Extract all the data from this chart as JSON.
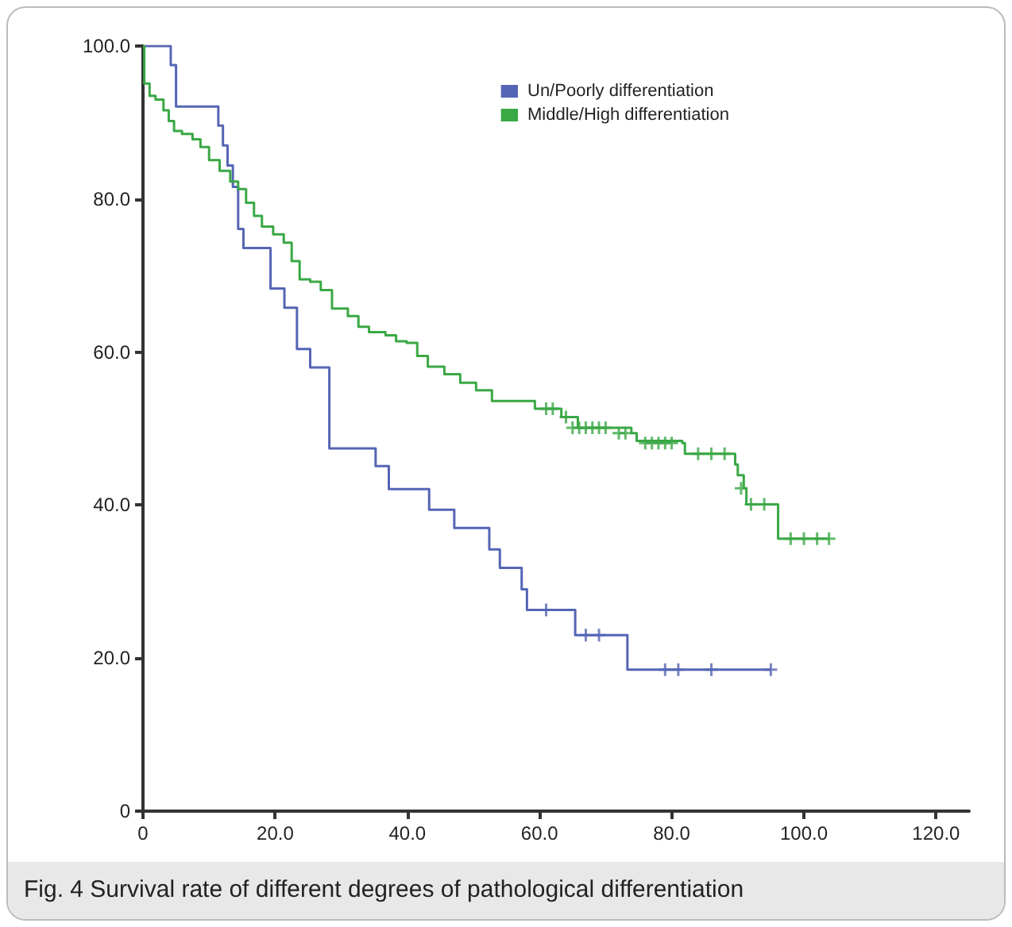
{
  "chart_data": {
    "type": "step",
    "annotations": [
      "Fig. 4 Survival rate of different degrees of pathological differentiation"
    ],
    "xlim": [
      0,
      125
    ],
    "xticks": [
      0,
      {
        "value": 20,
        "label": "20.0"
      },
      {
        "value": 40,
        "label": "40.0"
      },
      {
        "value": 60,
        "label": "60.0"
      },
      {
        "value": 80,
        "label": "80.0"
      },
      {
        "value": 100,
        "label": "100.0"
      },
      {
        "value": 120,
        "label": "120.0"
      }
    ],
    "ylim": [
      0,
      100
    ],
    "yticks": [
      0,
      {
        "value": 20,
        "label": "20.0"
      },
      {
        "value": 40,
        "label": "40.0"
      },
      {
        "value": 60,
        "label": "60.0"
      },
      {
        "value": 80,
        "label": "80.0"
      },
      {
        "value": 100,
        "label": "100.0"
      }
    ],
    "grid": false,
    "legend": "top right",
    "marker": "none",
    "line_style": "solid",
    "series": [
      {
        "name": "Un/Poorly differentiation",
        "color": "#5565b5",
        "x": [
          0,
          4.2,
          5,
          11.4,
          12.1,
          12.8,
          13.6,
          14.4,
          15.2,
          19.3,
          21.4,
          23.3,
          25.3,
          28.2,
          35.2,
          37.2,
          43.3,
          47.1,
          52.4,
          54,
          57.3,
          58.1,
          65.4,
          73.3,
          95
        ],
        "values": [
          100,
          97.5,
          92.1,
          89.6,
          87,
          84.4,
          81.6,
          76.1,
          73.6,
          68.3,
          65.8,
          60.4,
          58,
          47.4,
          45.1,
          42.1,
          39.4,
          37,
          34.2,
          31.8,
          29,
          26.3,
          23,
          18.5,
          18.5
        ]
      },
      {
        "name": "Middle/High differentiation",
        "color": "#3aa845",
        "x": [
          0,
          0.2,
          1,
          1.9,
          3.1,
          3.9,
          4.7,
          5.9,
          7.5,
          8.7,
          10,
          11.6,
          13.2,
          14.4,
          15.6,
          16.8,
          18,
          19.7,
          21.3,
          22.5,
          23.7,
          25.3,
          26.9,
          28.6,
          31,
          32.6,
          34.2,
          36.7,
          38.3,
          39.9,
          41.5,
          43.1,
          45.6,
          48,
          50.4,
          52.8,
          59.3,
          63.3,
          65.8,
          73.9,
          74.7,
          81.6,
          82,
          89.6,
          90,
          90.9,
          91.3,
          96.1,
          103.8
        ],
        "values": [
          100,
          95.1,
          93.5,
          93,
          91.6,
          90.2,
          88.9,
          88.5,
          87.8,
          86.8,
          85.1,
          83.7,
          82.3,
          81.3,
          79.5,
          77.8,
          76.4,
          75.4,
          74.3,
          71.9,
          69.5,
          69.2,
          68.1,
          65.7,
          64.7,
          63.3,
          62.6,
          62.2,
          61.4,
          61.2,
          59.5,
          58.1,
          57.1,
          56,
          55,
          53.6,
          52.6,
          51.5,
          50.1,
          49.4,
          48.4,
          48.1,
          46.7,
          45.3,
          43.9,
          42.2,
          40.1,
          35.6,
          35.6
        ]
      },
      {
        "type": "scatter",
        "marker": "cross",
        "color": "#5565b5",
        "x": [
          61,
          67,
          69,
          79,
          81,
          86,
          95
        ],
        "values": [
          26.3,
          23,
          23,
          18.5,
          18.5,
          18.5,
          18.5
        ]
      },
      {
        "type": "scatter",
        "marker": "cross",
        "color": "#3aa845",
        "x": [
          61,
          62,
          64,
          65,
          66,
          67,
          68,
          69,
          70,
          72,
          73,
          76,
          77,
          78,
          79,
          80,
          84,
          86,
          88,
          90.5,
          92,
          94,
          98,
          100,
          102,
          103.8
        ],
        "values": [
          52.6,
          52.6,
          51.5,
          50.1,
          50.1,
          50.1,
          50.1,
          50.1,
          50.1,
          49.4,
          49.4,
          48.1,
          48.1,
          48.1,
          48.1,
          48.1,
          46.7,
          46.7,
          46.7,
          42.2,
          40.1,
          40.1,
          35.6,
          35.6,
          35.6,
          35.6
        ]
      }
    ]
  }
}
